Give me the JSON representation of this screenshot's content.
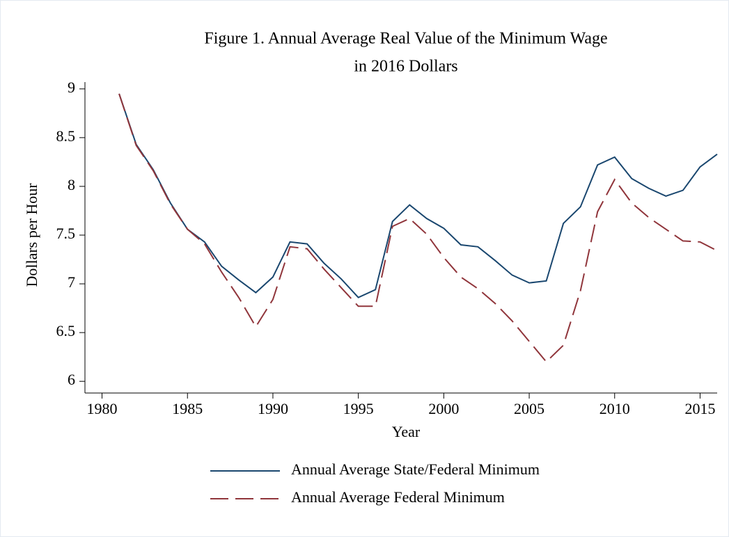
{
  "chart_data": {
    "type": "line",
    "title": [
      "Figure 1. Annual Average Real Value of the Minimum Wage",
      "in 2016 Dollars"
    ],
    "xlabel": "Year",
    "ylabel": "Dollars per Hour",
    "x": [
      1981,
      1982,
      1983,
      1984,
      1985,
      1986,
      1987,
      1988,
      1989,
      1990,
      1991,
      1992,
      1993,
      1994,
      1995,
      1996,
      1997,
      1998,
      1999,
      2000,
      2001,
      2002,
      2003,
      2004,
      2005,
      2006,
      2007,
      2008,
      2009,
      2010,
      2011,
      2012,
      2013,
      2014,
      2015,
      2016
    ],
    "series": [
      {
        "name": "Annual Average State/Federal Minimum",
        "color": "#1a476f",
        "linestyle": "solid",
        "values": [
          8.95,
          8.43,
          8.17,
          7.83,
          7.56,
          7.43,
          7.18,
          7.04,
          6.91,
          7.07,
          7.43,
          7.41,
          7.21,
          7.05,
          6.86,
          6.94,
          7.64,
          7.81,
          7.67,
          7.57,
          7.4,
          7.38,
          7.24,
          7.09,
          7.01,
          7.03,
          7.62,
          7.79,
          8.22,
          8.3,
          8.08,
          7.98,
          7.9,
          7.96,
          8.2,
          8.33
        ]
      },
      {
        "name": "Annual Average Federal Minimum",
        "color": "#90353b",
        "linestyle": "dashed",
        "values": [
          8.95,
          8.42,
          8.16,
          7.82,
          7.56,
          7.41,
          7.12,
          6.86,
          6.56,
          6.84,
          7.38,
          7.36,
          7.15,
          6.96,
          6.77,
          6.77,
          7.59,
          7.67,
          7.51,
          7.27,
          7.07,
          6.95,
          6.8,
          6.62,
          6.41,
          6.2,
          6.37,
          6.93,
          7.74,
          8.07,
          7.83,
          7.68,
          7.56,
          7.44,
          7.43,
          7.34
        ]
      }
    ],
    "xlim": [
      1979,
      2016
    ],
    "xticks": [
      1980,
      1985,
      1990,
      1995,
      2000,
      2005,
      2010,
      2015
    ],
    "ylim": [
      5.88,
      9.07
    ],
    "yticks": [
      6,
      6.5,
      7,
      7.5,
      8,
      8.5,
      9
    ],
    "grid": false,
    "legend": "bottom"
  }
}
